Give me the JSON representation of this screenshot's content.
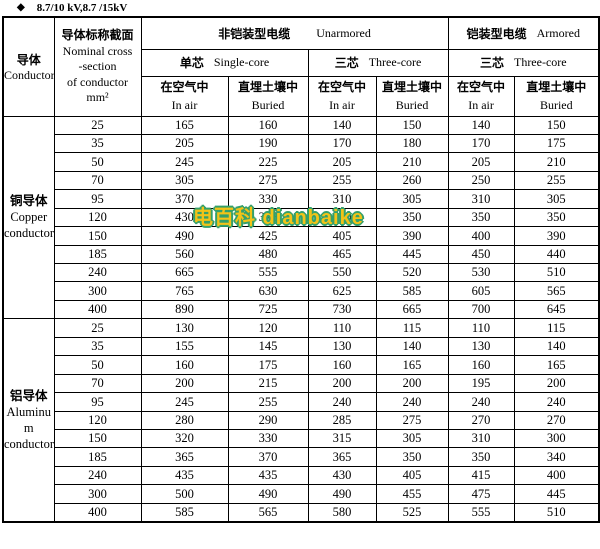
{
  "title": {
    "bullet": "◆",
    "text": "8.7/10 kV,8.7 /15kV"
  },
  "header": {
    "conductor_zh": "导体",
    "conductor_en": "Conductor",
    "cross_section_lines": [
      "导体标称截面",
      "Nominal cross",
      "-section",
      "of conductor",
      "mm²"
    ],
    "unarmored_zh": "非铠装型电缆",
    "unarmored_en": "Unarmored",
    "armored_zh": "铠装型电缆",
    "armored_en": "Armored",
    "single_core_zh": "单芯",
    "single_core_en": "Single-core",
    "three_core_zh": "三芯",
    "three_core_en": "Three-core",
    "in_air_zh": "在空气中",
    "in_air_en": "In air",
    "buried_zh": "直埋土壤中",
    "buried_en": "Buried"
  },
  "watermark": {
    "text": "电百科  dianbaike",
    "fill_color": "#F2C318",
    "outline_color": "#35A06B"
  },
  "table_data": {
    "type": "table",
    "column_groups": [
      "Unarmored Single-core In air",
      "Unarmored Single-core Buried",
      "Unarmored Three-core In air",
      "Unarmored Three-core Buried",
      "Armored Three-core In air",
      "Armored Three-core Buried"
    ],
    "sections": [
      {
        "label_lines": [
          "铜导体",
          "Copper",
          "conductor"
        ],
        "rows": [
          {
            "size": "25",
            "values": [
              "165",
              "160",
              "140",
              "150",
              "140",
              "150"
            ]
          },
          {
            "size": "35",
            "values": [
              "205",
              "190",
              "170",
              "180",
              "170",
              "175"
            ]
          },
          {
            "size": "50",
            "values": [
              "245",
              "225",
              "205",
              "210",
              "205",
              "210"
            ]
          },
          {
            "size": "70",
            "values": [
              "305",
              "275",
              "255",
              "260",
              "250",
              "255"
            ]
          },
          {
            "size": "95",
            "values": [
              "370",
              "330",
              "310",
              "305",
              "310",
              "305"
            ]
          },
          {
            "size": "120",
            "values": [
              "430",
              "375",
              "360",
              "350",
              "350",
              "350"
            ]
          },
          {
            "size": "150",
            "values": [
              "490",
              "425",
              "405",
              "390",
              "400",
              "390"
            ]
          },
          {
            "size": "185",
            "values": [
              "560",
              "480",
              "465",
              "445",
              "450",
              "440"
            ]
          },
          {
            "size": "240",
            "values": [
              "665",
              "555",
              "550",
              "520",
              "530",
              "510"
            ]
          },
          {
            "size": "300",
            "values": [
              "765",
              "630",
              "625",
              "585",
              "605",
              "565"
            ]
          },
          {
            "size": "400",
            "values": [
              "890",
              "725",
              "730",
              "665",
              "700",
              "645"
            ]
          }
        ]
      },
      {
        "label_lines": [
          "铝导体",
          "Aluminu",
          "m",
          "conductor"
        ],
        "rows": [
          {
            "size": "25",
            "values": [
              "130",
              "120",
              "110",
              "115",
              "110",
              "115"
            ]
          },
          {
            "size": "35",
            "values": [
              "155",
              "145",
              "130",
              "140",
              "130",
              "140"
            ]
          },
          {
            "size": "50",
            "values": [
              "160",
              "175",
              "160",
              "165",
              "160",
              "165"
            ]
          },
          {
            "size": "70",
            "values": [
              "200",
              "215",
              "200",
              "200",
              "195",
              "200"
            ]
          },
          {
            "size": "95",
            "values": [
              "245",
              "255",
              "240",
              "240",
              "240",
              "240"
            ]
          },
          {
            "size": "120",
            "values": [
              "280",
              "290",
              "285",
              "275",
              "270",
              "270"
            ]
          },
          {
            "size": "150",
            "values": [
              "320",
              "330",
              "315",
              "305",
              "310",
              "300"
            ]
          },
          {
            "size": "185",
            "values": [
              "365",
              "370",
              "365",
              "350",
              "350",
              "340"
            ]
          },
          {
            "size": "240",
            "values": [
              "435",
              "435",
              "430",
              "405",
              "415",
              "400"
            ]
          },
          {
            "size": "300",
            "values": [
              "500",
              "490",
              "490",
              "455",
              "475",
              "445"
            ]
          },
          {
            "size": "400",
            "values": [
              "585",
              "565",
              "580",
              "525",
              "555",
              "510"
            ]
          }
        ]
      }
    ]
  }
}
